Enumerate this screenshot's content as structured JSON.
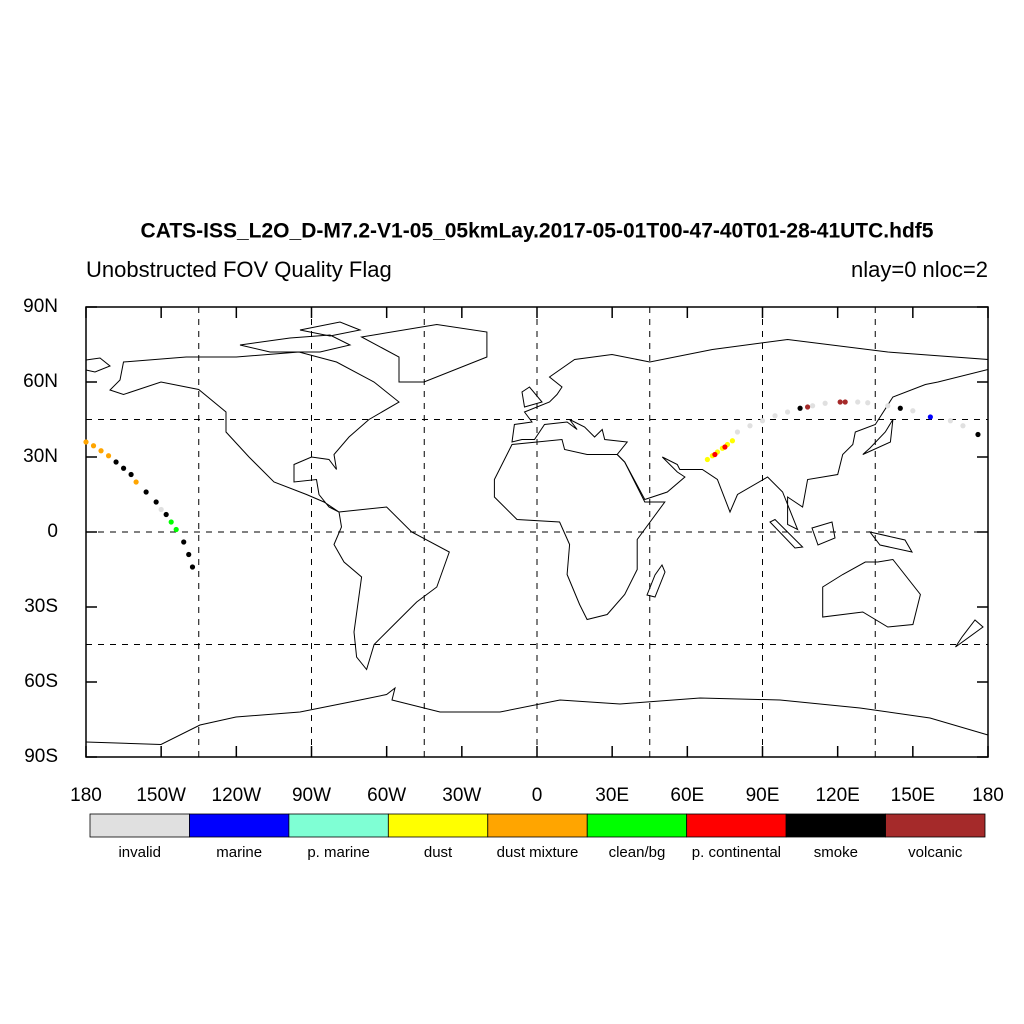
{
  "chart_data": {
    "type": "map",
    "title": "CATS-ISS_L2O_D-M7.2-V1-05_05kmLay.2017-05-01T00-47-40T01-28-41UTC.hdf5",
    "subtitle": "Unobstructed FOV Quality Flag",
    "annotation": "nlay=0 nloc=2",
    "xlim": [
      -180,
      180
    ],
    "ylim": [
      -90,
      90
    ],
    "xticks": [
      {
        "value": -180,
        "label": "180"
      },
      {
        "value": -150,
        "label": "150W"
      },
      {
        "value": -120,
        "label": "120W"
      },
      {
        "value": -90,
        "label": "90W"
      },
      {
        "value": -60,
        "label": "60W"
      },
      {
        "value": -30,
        "label": "30W"
      },
      0,
      {
        "value": 30,
        "label": "30E"
      },
      {
        "value": 60,
        "label": "60E"
      },
      {
        "value": 90,
        "label": "90E"
      },
      {
        "value": 120,
        "label": "120E"
      },
      {
        "value": 150,
        "label": "150E"
      },
      {
        "value": 180,
        "label": "180"
      }
    ],
    "yticks": [
      {
        "value": -90,
        "label": "90S"
      },
      {
        "value": -60,
        "label": "60S"
      },
      {
        "value": -30,
        "label": "30S"
      },
      0,
      {
        "value": 30,
        "label": "30N"
      },
      {
        "value": 60,
        "label": "60N"
      },
      {
        "value": 90,
        "label": "90N"
      }
    ],
    "grid_x": [
      -135,
      -90,
      -45,
      0,
      45,
      90,
      135
    ],
    "grid_y": [
      -45,
      0,
      45
    ],
    "series": [
      {
        "name": "invalid",
        "color": "#e0e0e0",
        "x": [
          80,
          85,
          90,
          95,
          100,
          110,
          115,
          128,
          132,
          140,
          150,
          165,
          170,
          -150
        ],
        "values": [
          40,
          42.5,
          44.5,
          46.5,
          48,
          50.5,
          51.5,
          52,
          51.7,
          50.5,
          48.5,
          44.5,
          42.5,
          9
        ]
      },
      {
        "name": "marine",
        "color": "#0000ff",
        "x": [
          157
        ],
        "values": [
          46
        ]
      },
      {
        "name": "p. marine",
        "color": "#7fffd4",
        "x": [],
        "values": []
      },
      {
        "name": "dust",
        "color": "#ffff00",
        "x": [
          68,
          70,
          72,
          74,
          76,
          78
        ],
        "values": [
          29,
          30.5,
          32,
          33.5,
          35,
          36.5
        ]
      },
      {
        "name": "dust mixture",
        "color": "#ffa500",
        "x": [
          -180,
          -177,
          -174,
          -171,
          -160
        ],
        "values": [
          36,
          34.5,
          32.5,
          30.5,
          20
        ]
      },
      {
        "name": "clean/bg",
        "color": "#00ff00",
        "x": [
          -146,
          -144
        ],
        "values": [
          4,
          1
        ]
      },
      {
        "name": "p. continental",
        "color": "#ff0000",
        "x": [
          71,
          75
        ],
        "values": [
          31,
          34
        ]
      },
      {
        "name": "smoke",
        "color": "#000000",
        "x": [
          -168,
          -165,
          -162,
          -156,
          -152,
          -148,
          -141,
          -139,
          -137.5,
          105,
          145,
          176
        ],
        "values": [
          28,
          25.5,
          23,
          16,
          12,
          7,
          -4,
          -9,
          -14,
          49.5,
          49.5,
          39
        ]
      },
      {
        "name": "volcanic",
        "color": "#a52a2a",
        "x": [
          121,
          123,
          108
        ],
        "values": [
          52,
          52,
          50
        ]
      }
    ]
  }
}
